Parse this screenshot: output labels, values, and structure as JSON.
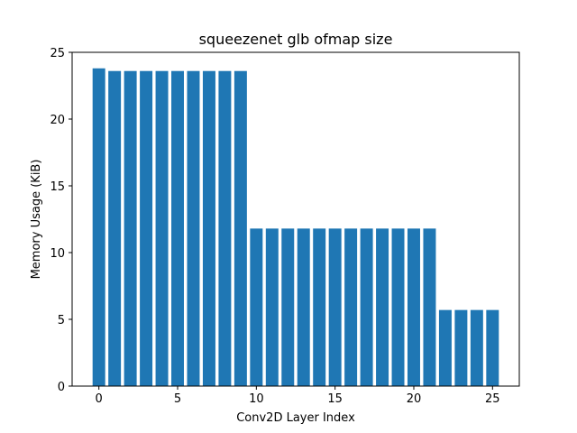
{
  "chart_data": {
    "type": "bar",
    "title": "squeezenet glb ofmap size",
    "xlabel": "Conv2D Layer Index",
    "ylabel": "Memory Usage (KiB)",
    "x": [
      0,
      1,
      2,
      3,
      4,
      5,
      6,
      7,
      8,
      9,
      10,
      11,
      12,
      13,
      14,
      15,
      16,
      17,
      18,
      19,
      20,
      21,
      22,
      23,
      24,
      25
    ],
    "values": [
      23.8,
      23.6,
      23.6,
      23.6,
      23.6,
      23.6,
      23.6,
      23.6,
      23.6,
      23.6,
      11.8,
      11.8,
      11.8,
      11.8,
      11.8,
      11.8,
      11.8,
      11.8,
      11.8,
      11.8,
      11.8,
      11.8,
      5.7,
      5.7,
      5.7,
      5.7
    ],
    "xlim": [
      -1.7,
      26.7
    ],
    "ylim": [
      0,
      25
    ],
    "xticks": [
      0,
      5,
      10,
      15,
      20,
      25
    ],
    "yticks": [
      0,
      5,
      10,
      15,
      20,
      25
    ],
    "bar_color": "#1f77b4",
    "grid": false
  }
}
